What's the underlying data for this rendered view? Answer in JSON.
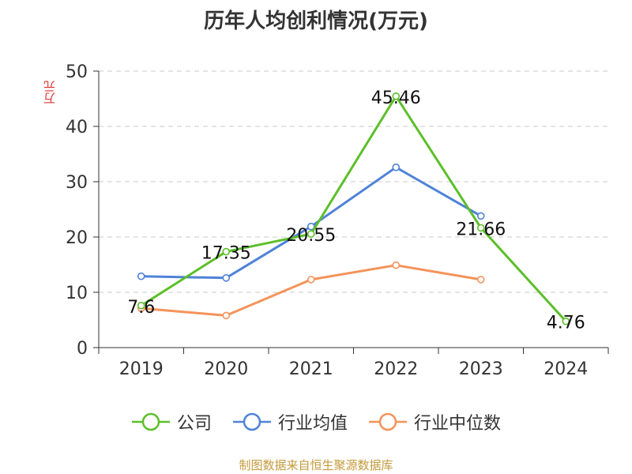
{
  "chart_data": {
    "type": "line",
    "title": "历年人均创利情况(万元)",
    "ylabel": "万元",
    "categories": [
      "2019",
      "2020",
      "2021",
      "2022",
      "2023",
      "2024"
    ],
    "ylim": [
      0,
      50
    ],
    "yticks": [
      0,
      10,
      20,
      30,
      40,
      50
    ],
    "grid": true,
    "legend_position": "bottom",
    "series": [
      {
        "name": "公司",
        "color": "#5cbf2a",
        "values": [
          7.6,
          17.35,
          20.55,
          45.46,
          21.66,
          4.76
        ],
        "labels": [
          "7.6",
          "17.35",
          "20.55",
          "45.46",
          "21.66",
          "4.76"
        ]
      },
      {
        "name": "行业均值",
        "color": "#4f82d9",
        "values": [
          12.9,
          12.6,
          21.9,
          32.6,
          23.8,
          null
        ]
      },
      {
        "name": "行业中位数",
        "color": "#f4935a",
        "values": [
          7.1,
          5.8,
          12.3,
          14.9,
          12.3,
          null
        ]
      }
    ]
  },
  "source": "制图数据来自恒生聚源数据库"
}
